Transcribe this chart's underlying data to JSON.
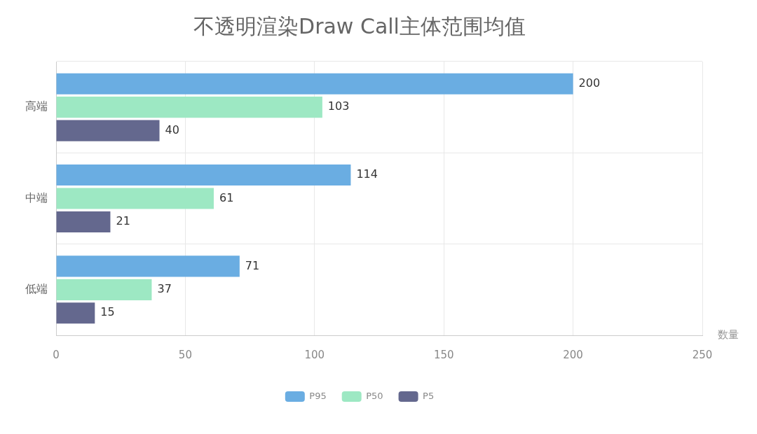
{
  "chart_data": {
    "type": "bar",
    "orientation": "horizontal",
    "title": "不透明渲染Draw Call主体范围均值",
    "xlabel": "数量",
    "categories": [
      "高端",
      "中端",
      "低端"
    ],
    "series": [
      {
        "name": "P95",
        "color": "#6aade2",
        "values": [
          200,
          114,
          71
        ]
      },
      {
        "name": "P50",
        "color": "#9de8c3",
        "values": [
          103,
          61,
          37
        ]
      },
      {
        "name": "P5",
        "color": "#64688e",
        "values": [
          40,
          21,
          15
        ]
      }
    ],
    "xlim": [
      0,
      250
    ],
    "xticks": [
      0,
      50,
      100,
      150,
      200,
      250
    ],
    "grid": true,
    "legend": "bottom",
    "data_labels": true
  }
}
